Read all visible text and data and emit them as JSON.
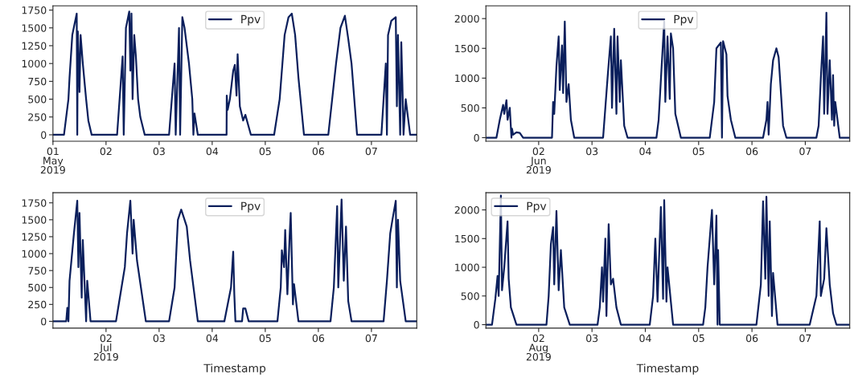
{
  "chart_data": [
    {
      "type": "line",
      "legend": "top",
      "grid": false,
      "ylim": [
        -90,
        1810
      ],
      "yticks": [
        0,
        250,
        500,
        750,
        1000,
        1250,
        1500,
        1750
      ],
      "xlim": [
        "2019-05-01T00:00",
        "2019-05-07T20:30"
      ],
      "xticks": [
        {
          "value": "2019-05-01",
          "label": "01\nMay\n2019"
        },
        {
          "value": "2019-05-02",
          "label": "02"
        },
        {
          "value": "2019-05-03",
          "label": "03"
        },
        {
          "value": "2019-05-04",
          "label": "04"
        },
        {
          "value": "2019-05-05",
          "label": "05"
        },
        {
          "value": "2019-05-06",
          "label": "06"
        },
        {
          "value": "2019-05-07",
          "label": "07"
        }
      ],
      "series": [
        {
          "name": "Ppv",
          "color": "#0b1f5c",
          "x": [
            "2019-05-01T00:00",
            "2019-05-01T05:00",
            "2019-05-01T07:00",
            "2019-05-01T07:30",
            "2019-05-01T08:45",
            "2019-05-01T09:45",
            "2019-05-01T10:45",
            "2019-05-01T11:00",
            "2019-05-01T11:15",
            "2019-05-01T12:00",
            "2019-05-01T12:30",
            "2019-05-01T13:30",
            "2019-05-01T15:00",
            "2019-05-01T16:00",
            "2019-05-01T17:30",
            "2019-05-02T05:00",
            "2019-05-02T07:30",
            "2019-05-02T08:00",
            "2019-05-02T09:00",
            "2019-05-02T10:30",
            "2019-05-02T11:00",
            "2019-05-02T11:30",
            "2019-05-02T12:00",
            "2019-05-02T12:45",
            "2019-05-02T13:30",
            "2019-05-02T14:30",
            "2019-05-02T15:30",
            "2019-05-02T17:30",
            "2019-05-03T04:30",
            "2019-05-03T07:00",
            "2019-05-03T07:30",
            "2019-05-03T09:00",
            "2019-05-03T09:30",
            "2019-05-03T10:30",
            "2019-05-03T11:30",
            "2019-05-03T13:30",
            "2019-05-03T15:00",
            "2019-05-03T15:30",
            "2019-05-03T16:00",
            "2019-05-03T17:30",
            "2019-05-04T06:30",
            "2019-05-04T06:35",
            "2019-05-04T07:00",
            "2019-05-04T08:00",
            "2019-05-04T09:30",
            "2019-05-04T10:15",
            "2019-05-04T11:00",
            "2019-05-04T11:30",
            "2019-05-04T12:30",
            "2019-05-04T14:00",
            "2019-05-04T15:00",
            "2019-05-04T17:30",
            "2019-05-05T04:00",
            "2019-05-05T06:30",
            "2019-05-05T07:45",
            "2019-05-05T08:45",
            "2019-05-05T10:30",
            "2019-05-05T12:00",
            "2019-05-05T13:30",
            "2019-05-05T15:00",
            "2019-05-05T17:30",
            "2019-05-06T04:30",
            "2019-05-06T08:00",
            "2019-05-06T10:00",
            "2019-05-06T12:00",
            "2019-05-06T13:30",
            "2019-05-06T15:00",
            "2019-05-06T17:30",
            "2019-05-07T04:30",
            "2019-05-07T06:30",
            "2019-05-07T07:00",
            "2019-05-07T07:30",
            "2019-05-07T09:00",
            "2019-05-07T11:00",
            "2019-05-07T11:30",
            "2019-05-07T12:00",
            "2019-05-07T13:00",
            "2019-05-07T13:30",
            "2019-05-07T14:00",
            "2019-05-07T14:30",
            "2019-05-07T15:30",
            "2019-05-07T17:30",
            "2019-05-07T20:30"
          ],
          "values": [
            0,
            0,
            500,
            800,
            1400,
            1550,
            1700,
            0,
            1450,
            600,
            1400,
            1000,
            500,
            200,
            0,
            0,
            1100,
            0,
            1500,
            1730,
            900,
            1700,
            500,
            1400,
            1100,
            500,
            250,
            0,
            0,
            1000,
            0,
            1500,
            0,
            1650,
            1500,
            1000,
            500,
            0,
            300,
            0,
            0,
            550,
            350,
            500,
            900,
            980,
            550,
            1130,
            400,
            200,
            280,
            0,
            0,
            500,
            1000,
            1400,
            1650,
            1700,
            1400,
            800,
            0,
            0,
            1000,
            1500,
            1670,
            1350,
            1000,
            0,
            0,
            1000,
            0,
            1400,
            1600,
            1650,
            400,
            1400,
            0,
            1300,
            700,
            0,
            500,
            0,
            0
          ]
        }
      ]
    },
    {
      "type": "line",
      "legend": "top",
      "grid": false,
      "ylim": [
        -60,
        2215
      ],
      "yticks": [
        0,
        500,
        1000,
        1500,
        2000
      ],
      "xlim": [
        "2019-06-01T00:15",
        "2019-06-07T20:00"
      ],
      "xticks": [
        {
          "value": "2019-06-02",
          "label": "02\nJun\n2019"
        },
        {
          "value": "2019-06-03",
          "label": "03"
        },
        {
          "value": "2019-06-04",
          "label": "04"
        },
        {
          "value": "2019-06-05",
          "label": "05"
        },
        {
          "value": "2019-06-06",
          "label": "06"
        },
        {
          "value": "2019-06-07",
          "label": "07"
        }
      ],
      "series": [
        {
          "name": "Ppv",
          "color": "#0b1f5c",
          "x": [
            "2019-06-01T00:15",
            "2019-06-01T05:00",
            "2019-06-01T06:30",
            "2019-06-01T08:00",
            "2019-06-01T08:30",
            "2019-06-01T09:30",
            "2019-06-01T10:00",
            "2019-06-01T11:00",
            "2019-06-01T11:45",
            "2019-06-01T12:00",
            "2019-06-01T12:30",
            "2019-06-01T14:00",
            "2019-06-01T15:30",
            "2019-06-01T17:00",
            "2019-06-02T06:00",
            "2019-06-02T06:30",
            "2019-06-02T07:00",
            "2019-06-02T08:00",
            "2019-06-02T09:00",
            "2019-06-02T09:30",
            "2019-06-02T10:30",
            "2019-06-02T11:00",
            "2019-06-02T11:45",
            "2019-06-02T12:30",
            "2019-06-02T13:30",
            "2019-06-02T14:30",
            "2019-06-02T16:00",
            "2019-06-03T05:00",
            "2019-06-03T07:00",
            "2019-06-03T08:30",
            "2019-06-03T09:00",
            "2019-06-03T10:00",
            "2019-06-03T11:00",
            "2019-06-03T11:30",
            "2019-06-03T12:30",
            "2019-06-03T13:00",
            "2019-06-03T14:30",
            "2019-06-03T16:00",
            "2019-06-04T05:00",
            "2019-06-04T06:00",
            "2019-06-04T07:30",
            "2019-06-04T08:30",
            "2019-06-04T09:00",
            "2019-06-04T10:00",
            "2019-06-04T11:00",
            "2019-06-04T11:30",
            "2019-06-04T12:30",
            "2019-06-04T13:30",
            "2019-06-04T16:00",
            "2019-06-05T05:00",
            "2019-06-05T07:00",
            "2019-06-05T08:00",
            "2019-06-05T10:00",
            "2019-06-05T10:30",
            "2019-06-05T11:00",
            "2019-06-05T12:30",
            "2019-06-05T13:00",
            "2019-06-05T14:30",
            "2019-06-05T16:30",
            "2019-06-06T05:00",
            "2019-06-06T06:30",
            "2019-06-06T07:00",
            "2019-06-06T07:30",
            "2019-06-06T08:30",
            "2019-06-06T09:30",
            "2019-06-06T11:00",
            "2019-06-06T12:00",
            "2019-06-06T14:00",
            "2019-06-06T15:30",
            "2019-06-07T05:00",
            "2019-06-07T06:00",
            "2019-06-07T07:00",
            "2019-06-07T08:00",
            "2019-06-07T08:30",
            "2019-06-07T09:30",
            "2019-06-07T10:00",
            "2019-06-07T11:00",
            "2019-06-07T12:00",
            "2019-06-07T12:30",
            "2019-06-07T13:00",
            "2019-06-07T13:30",
            "2019-06-07T15:30",
            "2019-06-07T20:00"
          ],
          "values": [
            0,
            0,
            300,
            550,
            400,
            630,
            300,
            500,
            0,
            150,
            50,
            90,
            80,
            0,
            0,
            600,
            400,
            1200,
            1700,
            800,
            1550,
            750,
            1950,
            600,
            900,
            300,
            0,
            0,
            1000,
            1700,
            500,
            1830,
            400,
            1700,
            600,
            1300,
            200,
            0,
            0,
            300,
            1300,
            1950,
            600,
            1700,
            650,
            1750,
            1500,
            400,
            0,
            0,
            600,
            1500,
            1600,
            0,
            1620,
            1400,
            700,
            300,
            0,
            0,
            300,
            600,
            50,
            900,
            1300,
            1500,
            1350,
            200,
            0,
            0,
            200,
            1000,
            1700,
            400,
            2100,
            400,
            1300,
            300,
            1050,
            200,
            600,
            0,
            0
          ]
        }
      ]
    },
    {
      "type": "line",
      "legend": "top",
      "grid": false,
      "xlabel": "Timestamp",
      "ylim": [
        -100,
        1900
      ],
      "yticks": [
        0,
        250,
        500,
        750,
        1000,
        1250,
        1500,
        1750
      ],
      "xlim": [
        "2019-07-01T00:00",
        "2019-07-07T20:30"
      ],
      "xticks": [
        {
          "value": "2019-07-02",
          "label": "02\nJul\n2019"
        },
        {
          "value": "2019-07-03",
          "label": "03"
        },
        {
          "value": "2019-07-04",
          "label": "04"
        },
        {
          "value": "2019-07-05",
          "label": "05"
        },
        {
          "value": "2019-07-06",
          "label": "06"
        },
        {
          "value": "2019-07-07",
          "label": "07"
        }
      ],
      "series": [
        {
          "name": "Ppv",
          "color": "#0b1f5c",
          "x": [
            "2019-07-01T00:00",
            "2019-07-01T06:00",
            "2019-07-01T06:30",
            "2019-07-01T07:00",
            "2019-07-01T07:30",
            "2019-07-01T09:30",
            "2019-07-01T11:00",
            "2019-07-01T11:30",
            "2019-07-01T12:00",
            "2019-07-01T13:00",
            "2019-07-01T13:30",
            "2019-07-01T15:00",
            "2019-07-01T15:30",
            "2019-07-01T17:00",
            "2019-07-02T04:30",
            "2019-07-02T07:00",
            "2019-07-02T08:30",
            "2019-07-02T09:30",
            "2019-07-02T11:00",
            "2019-07-02T12:00",
            "2019-07-02T12:30",
            "2019-07-02T14:00",
            "2019-07-02T18:00",
            "2019-07-03T04:30",
            "2019-07-03T07:00",
            "2019-07-03T08:30",
            "2019-07-03T10:00",
            "2019-07-03T11:00",
            "2019-07-03T12:30",
            "2019-07-03T14:00",
            "2019-07-03T17:30",
            "2019-07-04T05:30",
            "2019-07-04T08:30",
            "2019-07-04T09:30",
            "2019-07-04T10:00",
            "2019-07-04T10:30",
            "2019-07-04T13:30",
            "2019-07-04T14:00",
            "2019-07-04T15:00",
            "2019-07-04T16:30",
            "2019-07-05T05:30",
            "2019-07-05T07:00",
            "2019-07-05T07:30",
            "2019-07-05T08:30",
            "2019-07-05T09:00",
            "2019-07-05T10:00",
            "2019-07-05T11:00",
            "2019-07-05T11:30",
            "2019-07-05T12:30",
            "2019-07-05T13:00",
            "2019-07-05T15:00",
            "2019-07-06T05:30",
            "2019-07-06T07:00",
            "2019-07-06T08:30",
            "2019-07-06T09:00",
            "2019-07-06T10:30",
            "2019-07-06T11:30",
            "2019-07-06T12:30",
            "2019-07-06T13:30",
            "2019-07-06T15:00",
            "2019-07-07T05:30",
            "2019-07-07T07:00",
            "2019-07-07T08:30",
            "2019-07-07T09:30",
            "2019-07-07T11:00",
            "2019-07-07T11:30",
            "2019-07-07T12:00",
            "2019-07-07T13:00",
            "2019-07-07T15:30",
            "2019-07-07T20:30"
          ],
          "values": [
            0,
            0,
            200,
            0,
            600,
            1300,
            1780,
            800,
            1600,
            350,
            1200,
            0,
            600,
            0,
            0,
            500,
            800,
            1300,
            1780,
            1000,
            1500,
            900,
            0,
            0,
            500,
            1500,
            1650,
            1550,
            1400,
            900,
            0,
            0,
            500,
            1030,
            400,
            0,
            0,
            190,
            190,
            0,
            0,
            500,
            1050,
            800,
            1350,
            400,
            1250,
            1600,
            250,
            550,
            0,
            0,
            500,
            1700,
            500,
            1800,
            600,
            1400,
            300,
            0,
            0,
            600,
            1300,
            1500,
            1780,
            500,
            1500,
            600,
            0,
            0
          ]
        }
      ]
    },
    {
      "type": "line",
      "legend": "top left",
      "grid": false,
      "xlabel": "Timestamp",
      "ylim": [
        -60,
        2300
      ],
      "yticks": [
        0,
        500,
        1000,
        1500,
        2000
      ],
      "xlim": [
        "2019-08-01T00:15",
        "2019-08-07T20:00"
      ],
      "xticks": [
        {
          "value": "2019-08-02",
          "label": "02\nAug\n2019"
        },
        {
          "value": "2019-08-03",
          "label": "03"
        },
        {
          "value": "2019-08-04",
          "label": "04"
        },
        {
          "value": "2019-08-05",
          "label": "05"
        },
        {
          "value": "2019-08-06",
          "label": "06"
        },
        {
          "value": "2019-08-07",
          "label": "07"
        }
      ],
      "series": [
        {
          "name": "Ppv",
          "color": "#0b1f5c",
          "x": [
            "2019-08-01T00:15",
            "2019-08-01T03:00",
            "2019-08-01T04:30",
            "2019-08-01T05:30",
            "2019-08-01T06:00",
            "2019-08-01T07:00",
            "2019-08-01T07:30",
            "2019-08-01T08:30",
            "2019-08-01T10:00",
            "2019-08-01T10:30",
            "2019-08-01T11:30",
            "2019-08-01T14:00",
            "2019-08-02T03:30",
            "2019-08-02T04:30",
            "2019-08-02T05:30",
            "2019-08-02T06:30",
            "2019-08-02T07:00",
            "2019-08-02T08:00",
            "2019-08-02T09:00",
            "2019-08-02T10:00",
            "2019-08-02T11:30",
            "2019-08-02T14:00",
            "2019-08-03T02:30",
            "2019-08-03T03:30",
            "2019-08-03T04:30",
            "2019-08-03T05:00",
            "2019-08-03T06:00",
            "2019-08-03T06:30",
            "2019-08-03T07:30",
            "2019-08-03T08:30",
            "2019-08-03T09:30",
            "2019-08-03T11:00",
            "2019-08-03T13:00",
            "2019-08-04T02:00",
            "2019-08-04T03:30",
            "2019-08-04T04:30",
            "2019-08-04T05:30",
            "2019-08-04T07:00",
            "2019-08-04T08:00",
            "2019-08-04T08:30",
            "2019-08-04T09:30",
            "2019-08-04T10:00",
            "2019-08-04T12:30",
            "2019-08-05T02:00",
            "2019-08-05T03:00",
            "2019-08-05T04:00",
            "2019-08-05T05:00",
            "2019-08-05T06:00",
            "2019-08-05T07:00",
            "2019-08-05T08:00",
            "2019-08-05T08:30",
            "2019-08-05T08:45",
            "2019-08-05T09:30",
            "2019-08-06T02:00",
            "2019-08-06T04:00",
            "2019-08-06T05:00",
            "2019-08-06T06:00",
            "2019-08-06T06:30",
            "2019-08-06T07:30",
            "2019-08-06T08:00",
            "2019-08-06T09:00",
            "2019-08-06T09:30",
            "2019-08-06T11:30",
            "2019-08-07T02:00",
            "2019-08-07T05:00",
            "2019-08-07T06:30",
            "2019-08-07T07:00",
            "2019-08-07T08:30",
            "2019-08-07T09:30",
            "2019-08-07T11:00",
            "2019-08-07T12:30",
            "2019-08-07T14:00",
            "2019-08-07T20:00"
          ],
          "values": [
            0,
            0,
            450,
            850,
            500,
            2250,
            600,
            1000,
            1800,
            800,
            300,
            0,
            0,
            500,
            1400,
            1700,
            700,
            1980,
            600,
            1300,
            300,
            0,
            0,
            300,
            1000,
            400,
            1500,
            150,
            1750,
            700,
            800,
            300,
            0,
            0,
            500,
            1500,
            400,
            2050,
            450,
            2170,
            400,
            1000,
            0,
            0,
            300,
            1000,
            1500,
            2000,
            700,
            1900,
            0,
            1300,
            0,
            0,
            700,
            2150,
            800,
            2230,
            500,
            1800,
            150,
            900,
            0,
            0,
            500,
            1800,
            500,
            800,
            1680,
            700,
            200,
            0,
            0
          ]
        }
      ]
    }
  ]
}
